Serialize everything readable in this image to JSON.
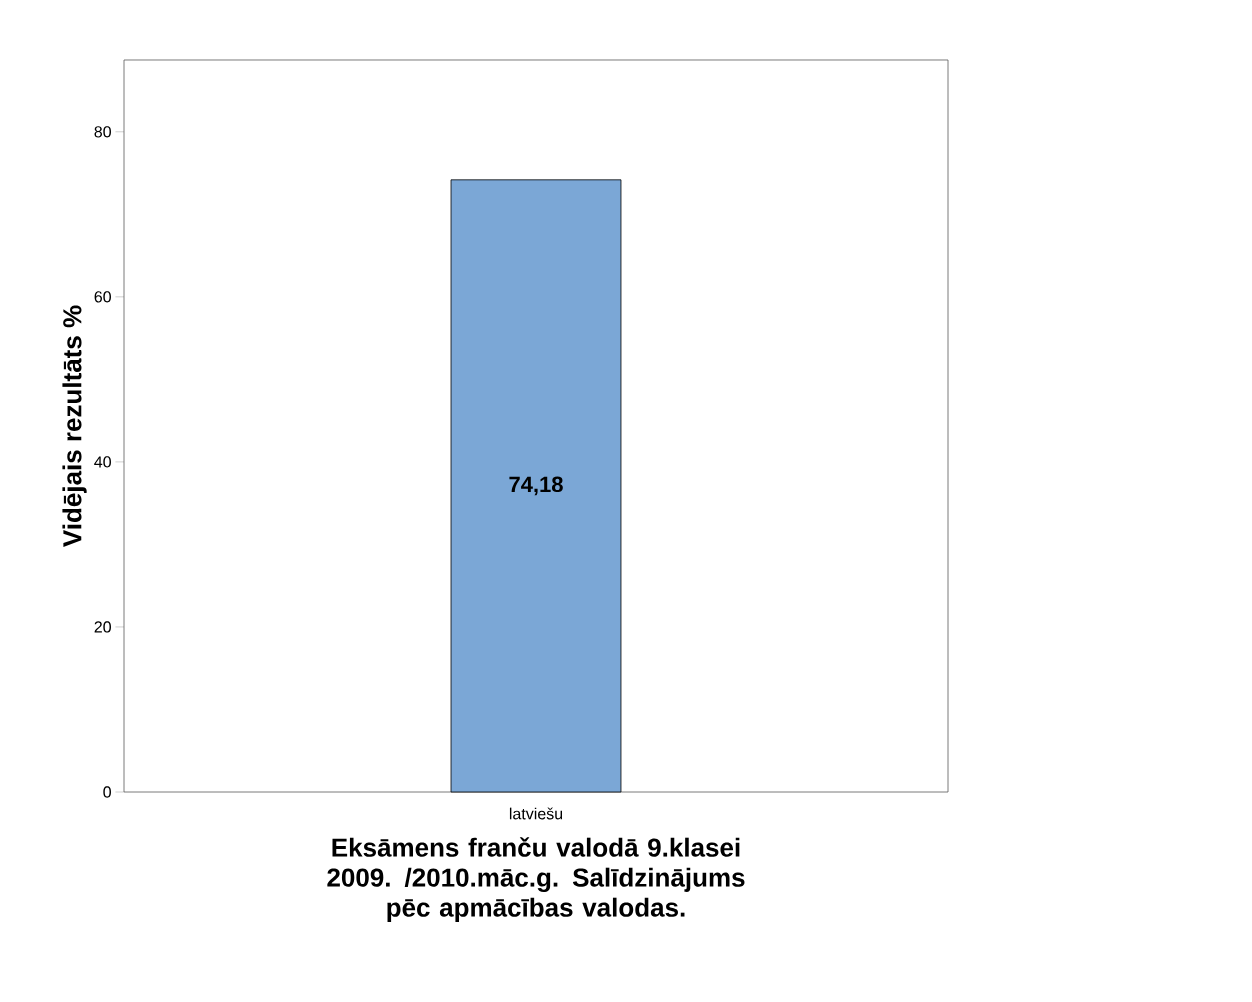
{
  "chart_data": {
    "type": "bar",
    "xlabel": "Eksāmens franču valodā 9.klasei 2009. /2010.māc.g. Salīdzinājums pēc apmācības valodas.",
    "ylabel": "Vidējais rezultāts %",
    "categories": [
      "latviešu"
    ],
    "values": [
      74.18
    ],
    "value_labels": [
      "74,18"
    ],
    "color": "#7ba7d6",
    "ylim": [
      0,
      88.7
    ],
    "yticks": [
      {
        "value": 0,
        "label": "0"
      },
      {
        "value": 20,
        "label": "20"
      },
      {
        "value": 40,
        "label": "40"
      },
      {
        "value": 60,
        "label": "60"
      },
      {
        "value": 80,
        "label": "80"
      }
    ],
    "grid": false
  }
}
